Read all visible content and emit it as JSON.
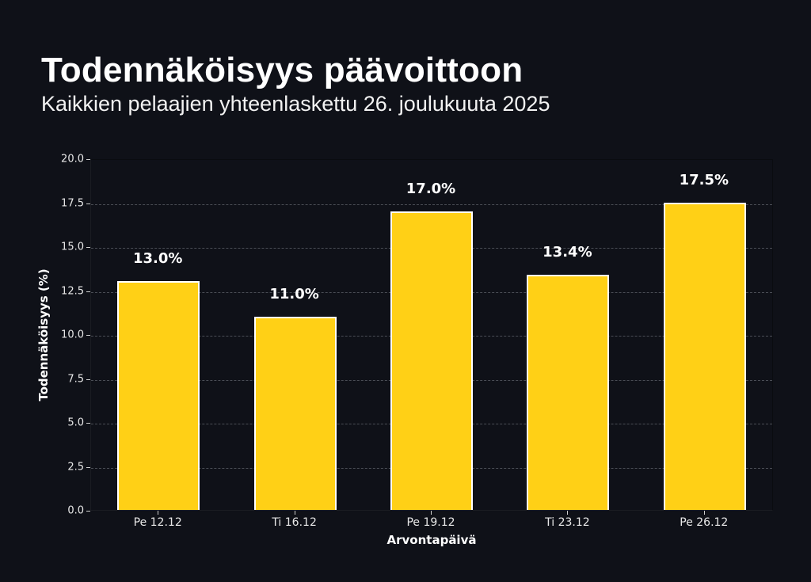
{
  "header": {
    "title": "Todennäköisyys päävoittoon",
    "subtitle": "Kaikkien pelaajien yhteenlaskettu 26. joulukuuta 2025"
  },
  "colors": {
    "background": "#0f1118",
    "bar_fill": "#ffd016",
    "bar_edge": "#ffffff",
    "grid": "#4a4d55",
    "text": "#ffffff"
  },
  "chart_data": {
    "type": "bar",
    "title": "Todennäköisyys päävoittoon",
    "subtitle": "Kaikkien pelaajien yhteenlaskettu 26. joulukuuta 2025",
    "xlabel": "Arvontapäivä",
    "ylabel": "Todennäköisyys (%)",
    "categories": [
      "Pe 12.12",
      "Ti 16.12",
      "Pe 19.12",
      "Ti 23.12",
      "Pe 26.12"
    ],
    "values": [
      13.0,
      11.0,
      17.0,
      13.4,
      17.5
    ],
    "data_labels": [
      "13.0%",
      "11.0%",
      "17.0%",
      "13.4%",
      "17.5%"
    ],
    "ylim": [
      0,
      20
    ],
    "yticks": [
      "0.0",
      "2.5",
      "5.0",
      "7.5",
      "10.0",
      "12.5",
      "15.0",
      "17.5",
      "20.0"
    ],
    "grid": {
      "y": true,
      "x": false,
      "style": "dashed"
    },
    "legend": null
  }
}
